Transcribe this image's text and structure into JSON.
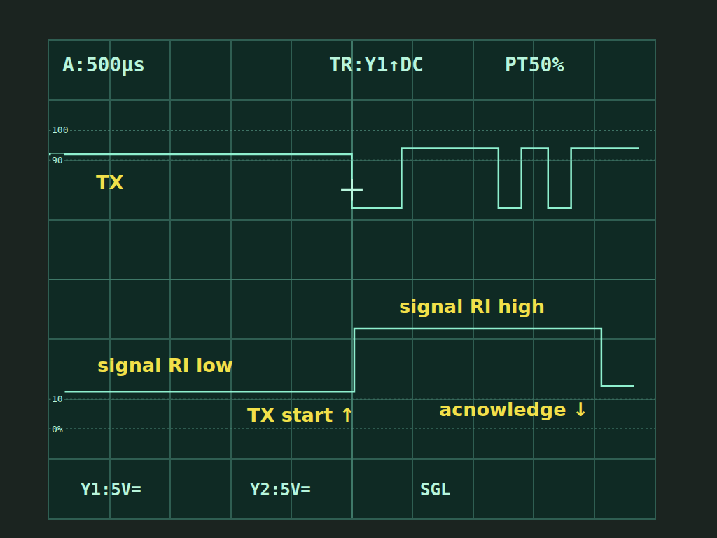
{
  "chart_data": {
    "type": "line",
    "xlim": [
      -2.5,
      2.5
    ],
    "ylim": [
      -4,
      4
    ],
    "xticks": [
      -2.5,
      -2,
      -1.5,
      -1,
      -0.5,
      0,
      0.5,
      1,
      1.5,
      2,
      2.5
    ],
    "yticks": [
      -4,
      -3,
      -2,
      -1,
      0,
      1,
      2,
      3,
      4
    ],
    "grid": true,
    "tick_labels": false,
    "series": [
      {
        "name": "TX",
        "color": "#8ff0cf",
        "x": [
          -2.5,
          0,
          0,
          0.41,
          0.41,
          1.21,
          1.21,
          1.4,
          1.4,
          1.62,
          1.62,
          1.81,
          1.81,
          2.37
        ],
        "values": [
          2.1,
          2.1,
          1.2,
          1.2,
          2.2,
          2.2,
          1.2,
          1.2,
          2.2,
          2.2,
          1.2,
          1.2,
          2.2,
          2.2
        ]
      },
      {
        "color": "#8ff0cf",
        "x": [
          -2.37,
          0.02,
          0.02,
          2.06,
          2.06,
          2.33
        ],
        "values": [
          -1.88,
          -1.88,
          -0.82,
          -0.82,
          -1.78,
          -1.78
        ]
      }
    ],
    "trigger": {
      "x": 0,
      "y": 1.5
    },
    "ref_lines": [
      {
        "value": 2.5,
        "label": "100"
      },
      {
        "value": 2,
        "label": "90"
      },
      {
        "value": -2,
        "label": "10"
      },
      {
        "value": -2.5,
        "label": "0%"
      }
    ],
    "annotations": [
      {
        "text": "TX",
        "x": -2.0,
        "y": 1.62
      },
      {
        "text": "signal RI high",
        "x": 0.99,
        "y": -0.45
      },
      {
        "text": "signal RI low",
        "x": -1.54,
        "y": -1.44
      },
      {
        "text": "TX start ↑",
        "x": -0.42,
        "y": -2.27
      },
      {
        "text": "acnowledge ↓",
        "x": 1.34,
        "y": -2.18
      }
    ],
    "readouts": {
      "top": [
        "A:500µs",
        "TR:Y1↑DC",
        "PT50%"
      ],
      "bottom": [
        "Y1:5V=",
        "Y2:5V=",
        "SGL"
      ]
    }
  }
}
